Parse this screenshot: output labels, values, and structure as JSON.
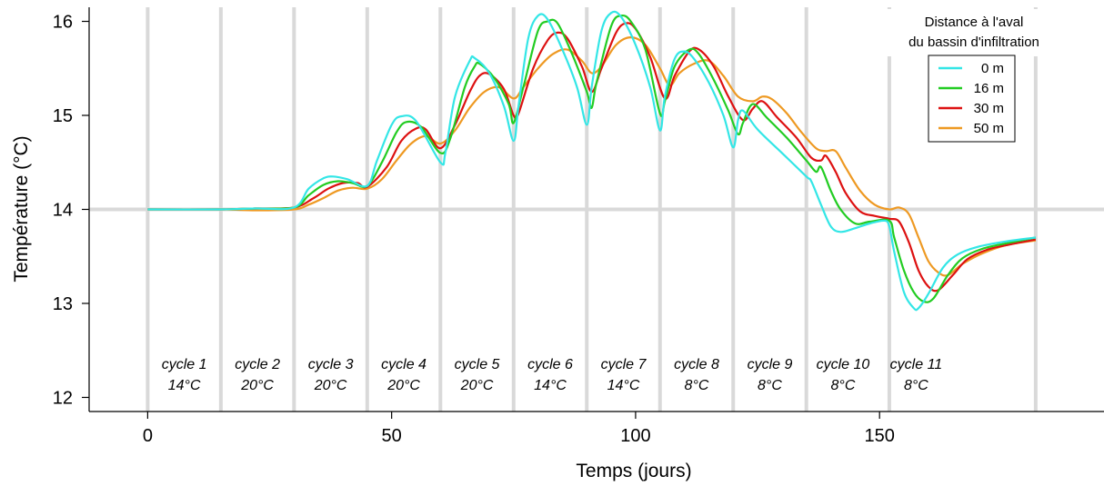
{
  "chart_data": {
    "type": "line",
    "xlabel": "Temps (jours)",
    "ylabel": "Température (°C)",
    "xlim": [
      -12,
      196
    ],
    "ylim": [
      11.85,
      16.15
    ],
    "xticks": [
      0,
      50,
      100,
      150
    ],
    "yticks": [
      12,
      13,
      14,
      15,
      16
    ],
    "grid": {
      "horizontal": [
        14
      ],
      "vertical": [
        0,
        15,
        30,
        45,
        60,
        75,
        90,
        105,
        120,
        135,
        152,
        182
      ]
    },
    "legend": {
      "title_line1": "Distance à l'aval",
      "title_line2": "du bassin d'infiltration",
      "placement": "top-right"
    },
    "cycles": [
      {
        "name": "cycle 1",
        "temp": "14°C",
        "x": 7.5
      },
      {
        "name": "cycle 2",
        "temp": "20°C",
        "x": 22.5
      },
      {
        "name": "cycle 3",
        "temp": "20°C",
        "x": 37.5
      },
      {
        "name": "cycle 4",
        "temp": "20°C",
        "x": 52.5
      },
      {
        "name": "cycle 5",
        "temp": "20°C",
        "x": 67.5
      },
      {
        "name": "cycle 6",
        "temp": "14°C",
        "x": 82.5
      },
      {
        "name": "cycle 7",
        "temp": "14°C",
        "x": 97.5
      },
      {
        "name": "cycle 8",
        "temp": "8°C",
        "x": 112.5
      },
      {
        "name": "cycle 9",
        "temp": "8°C",
        "x": 127.5
      },
      {
        "name": "cycle 10",
        "temp": "8°C",
        "x": 142.5
      },
      {
        "name": "cycle 11",
        "temp": "8°C",
        "x": 157.5
      }
    ],
    "series": [
      {
        "name": "0 m",
        "color": "#33e6e6",
        "points": [
          [
            0,
            14.0
          ],
          [
            15,
            14.0
          ],
          [
            22,
            14.01
          ],
          [
            30,
            14.02
          ],
          [
            33,
            14.22
          ],
          [
            36,
            14.33
          ],
          [
            38,
            14.35
          ],
          [
            41,
            14.32
          ],
          [
            45,
            14.25
          ],
          [
            47,
            14.52
          ],
          [
            50,
            14.9
          ],
          [
            52,
            14.99
          ],
          [
            55,
            14.94
          ],
          [
            60,
            14.5
          ],
          [
            61,
            14.6
          ],
          [
            63,
            15.2
          ],
          [
            66,
            15.58
          ],
          [
            67,
            15.61
          ],
          [
            70,
            15.45
          ],
          [
            73,
            15.1
          ],
          [
            75,
            14.73
          ],
          [
            76,
            15.1
          ],
          [
            78,
            15.82
          ],
          [
            80,
            16.06
          ],
          [
            82,
            16.02
          ],
          [
            85,
            15.7
          ],
          [
            88,
            15.3
          ],
          [
            90,
            14.9
          ],
          [
            91,
            15.3
          ],
          [
            93,
            15.9
          ],
          [
            95,
            16.09
          ],
          [
            97,
            16.05
          ],
          [
            100,
            15.75
          ],
          [
            103,
            15.3
          ],
          [
            105,
            14.84
          ],
          [
            106,
            15.2
          ],
          [
            108,
            15.6
          ],
          [
            110,
            15.68
          ],
          [
            112,
            15.6
          ],
          [
            115,
            15.35
          ],
          [
            118,
            15.0
          ],
          [
            120,
            14.66
          ],
          [
            121,
            14.95
          ],
          [
            122,
            15.05
          ],
          [
            125,
            14.85
          ],
          [
            130,
            14.6
          ],
          [
            135,
            14.35
          ],
          [
            136,
            14.3
          ],
          [
            138,
            14.05
          ],
          [
            140,
            13.82
          ],
          [
            142,
            13.76
          ],
          [
            145,
            13.8
          ],
          [
            148,
            13.85
          ],
          [
            151,
            13.88
          ],
          [
            152,
            13.82
          ],
          [
            153,
            13.55
          ],
          [
            155,
            13.12
          ],
          [
            157,
            12.95
          ],
          [
            158,
            12.95
          ],
          [
            160,
            13.1
          ],
          [
            163,
            13.38
          ],
          [
            166,
            13.52
          ],
          [
            170,
            13.6
          ],
          [
            176,
            13.66
          ],
          [
            182,
            13.7
          ]
        ]
      },
      {
        "name": "16 m",
        "color": "#22cc22",
        "points": [
          [
            0,
            14.0
          ],
          [
            15,
            14.0
          ],
          [
            22,
            14.01
          ],
          [
            30,
            14.02
          ],
          [
            33,
            14.15
          ],
          [
            36,
            14.26
          ],
          [
            39,
            14.3
          ],
          [
            42,
            14.28
          ],
          [
            45,
            14.25
          ],
          [
            48,
            14.5
          ],
          [
            51,
            14.82
          ],
          [
            53,
            14.93
          ],
          [
            56,
            14.88
          ],
          [
            60,
            14.6
          ],
          [
            62,
            14.75
          ],
          [
            65,
            15.3
          ],
          [
            67,
            15.52
          ],
          [
            68,
            15.55
          ],
          [
            71,
            15.4
          ],
          [
            74,
            15.12
          ],
          [
            75,
            14.92
          ],
          [
            77,
            15.3
          ],
          [
            80,
            15.9
          ],
          [
            82,
            16.0
          ],
          [
            84,
            15.98
          ],
          [
            87,
            15.65
          ],
          [
            90,
            15.25
          ],
          [
            91,
            15.08
          ],
          [
            92,
            15.35
          ],
          [
            95,
            15.95
          ],
          [
            97,
            16.06
          ],
          [
            99,
            16.0
          ],
          [
            102,
            15.7
          ],
          [
            105,
            15.02
          ],
          [
            106,
            15.15
          ],
          [
            108,
            15.52
          ],
          [
            111,
            15.7
          ],
          [
            113,
            15.65
          ],
          [
            116,
            15.38
          ],
          [
            119,
            15.05
          ],
          [
            121,
            14.8
          ],
          [
            122,
            14.92
          ],
          [
            124,
            15.12
          ],
          [
            127,
            14.97
          ],
          [
            131,
            14.76
          ],
          [
            135,
            14.52
          ],
          [
            137,
            14.4
          ],
          [
            138,
            14.45
          ],
          [
            140,
            14.2
          ],
          [
            142,
            14.0
          ],
          [
            145,
            13.85
          ],
          [
            148,
            13.87
          ],
          [
            152,
            13.88
          ],
          [
            153,
            13.7
          ],
          [
            155,
            13.35
          ],
          [
            157,
            13.12
          ],
          [
            159,
            13.02
          ],
          [
            161,
            13.05
          ],
          [
            164,
            13.3
          ],
          [
            167,
            13.48
          ],
          [
            171,
            13.58
          ],
          [
            176,
            13.64
          ],
          [
            182,
            13.7
          ]
        ]
      },
      {
        "name": "30 m",
        "color": "#dd1111",
        "points": [
          [
            0,
            14.0
          ],
          [
            15,
            14.0
          ],
          [
            22,
            14.01
          ],
          [
            30,
            14.02
          ],
          [
            34,
            14.12
          ],
          [
            37,
            14.22
          ],
          [
            40,
            14.28
          ],
          [
            43,
            14.28
          ],
          [
            45,
            14.24
          ],
          [
            49,
            14.45
          ],
          [
            52,
            14.73
          ],
          [
            55,
            14.86
          ],
          [
            57,
            14.85
          ],
          [
            60,
            14.65
          ],
          [
            63,
            14.9
          ],
          [
            66,
            15.25
          ],
          [
            68,
            15.42
          ],
          [
            70,
            15.44
          ],
          [
            73,
            15.28
          ],
          [
            75,
            15.0
          ],
          [
            76,
            15.02
          ],
          [
            79,
            15.5
          ],
          [
            82,
            15.8
          ],
          [
            84,
            15.88
          ],
          [
            86,
            15.82
          ],
          [
            89,
            15.52
          ],
          [
            91,
            15.25
          ],
          [
            93,
            15.5
          ],
          [
            96,
            15.88
          ],
          [
            98,
            15.98
          ],
          [
            100,
            15.92
          ],
          [
            103,
            15.62
          ],
          [
            106,
            15.18
          ],
          [
            108,
            15.42
          ],
          [
            111,
            15.68
          ],
          [
            113,
            15.7
          ],
          [
            116,
            15.52
          ],
          [
            119,
            15.2
          ],
          [
            122,
            14.95
          ],
          [
            124,
            15.07
          ],
          [
            126,
            15.15
          ],
          [
            129,
            14.98
          ],
          [
            133,
            14.76
          ],
          [
            136,
            14.55
          ],
          [
            138,
            14.52
          ],
          [
            139,
            14.57
          ],
          [
            141,
            14.4
          ],
          [
            143,
            14.18
          ],
          [
            146,
            13.98
          ],
          [
            149,
            13.93
          ],
          [
            152,
            13.9
          ],
          [
            154,
            13.87
          ],
          [
            156,
            13.65
          ],
          [
            158,
            13.35
          ],
          [
            160,
            13.18
          ],
          [
            162,
            13.14
          ],
          [
            165,
            13.3
          ],
          [
            168,
            13.47
          ],
          [
            172,
            13.57
          ],
          [
            177,
            13.63
          ],
          [
            182,
            13.68
          ]
        ]
      },
      {
        "name": "50 m",
        "color": "#ee9922",
        "points": [
          [
            0,
            14.0
          ],
          [
            15,
            14.0
          ],
          [
            22,
            13.99
          ],
          [
            30,
            14.0
          ],
          [
            33,
            14.05
          ],
          [
            36,
            14.12
          ],
          [
            39,
            14.2
          ],
          [
            42,
            14.23
          ],
          [
            45,
            14.22
          ],
          [
            48,
            14.32
          ],
          [
            51,
            14.52
          ],
          [
            54,
            14.7
          ],
          [
            57,
            14.78
          ],
          [
            60,
            14.7
          ],
          [
            63,
            14.84
          ],
          [
            66,
            15.08
          ],
          [
            69,
            15.25
          ],
          [
            72,
            15.3
          ],
          [
            75,
            15.18
          ],
          [
            77,
            15.3
          ],
          [
            80,
            15.5
          ],
          [
            83,
            15.65
          ],
          [
            86,
            15.7
          ],
          [
            89,
            15.58
          ],
          [
            91,
            15.45
          ],
          [
            93,
            15.52
          ],
          [
            96,
            15.75
          ],
          [
            99,
            15.83
          ],
          [
            102,
            15.75
          ],
          [
            105,
            15.5
          ],
          [
            107,
            15.32
          ],
          [
            109,
            15.45
          ],
          [
            112,
            15.55
          ],
          [
            115,
            15.58
          ],
          [
            118,
            15.42
          ],
          [
            121,
            15.2
          ],
          [
            124,
            15.15
          ],
          [
            126,
            15.2
          ],
          [
            128,
            15.17
          ],
          [
            131,
            15.02
          ],
          [
            134,
            14.82
          ],
          [
            137,
            14.65
          ],
          [
            139,
            14.62
          ],
          [
            141,
            14.62
          ],
          [
            143,
            14.45
          ],
          [
            146,
            14.2
          ],
          [
            149,
            14.05
          ],
          [
            152,
            14.0
          ],
          [
            154,
            14.02
          ],
          [
            156,
            13.95
          ],
          [
            158,
            13.7
          ],
          [
            160,
            13.45
          ],
          [
            162,
            13.33
          ],
          [
            164,
            13.3
          ],
          [
            167,
            13.42
          ],
          [
            171,
            13.53
          ],
          [
            176,
            13.62
          ],
          [
            182,
            13.67
          ]
        ]
      }
    ]
  }
}
